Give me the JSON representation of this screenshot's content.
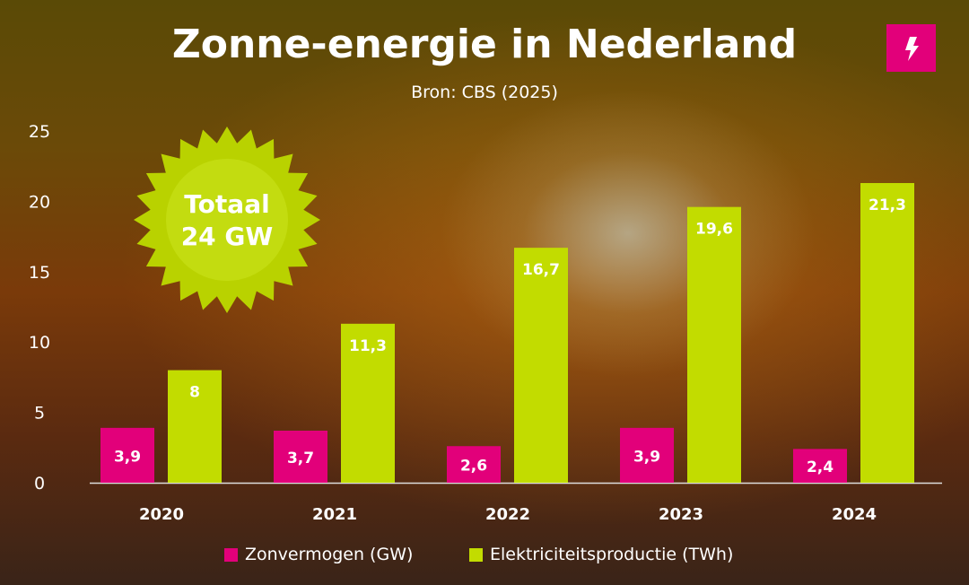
{
  "title": "Zonne-energie in Nederland",
  "subtitle": "Bron: CBS (2025)",
  "logo_icon": "lightning-bolt-icon",
  "badge": {
    "line1": "Totaal",
    "line2": "24 GW",
    "icon": "sun-icon"
  },
  "chart_data": {
    "type": "bar",
    "title": "Zonne-energie in Nederland",
    "categories": [
      "2020",
      "2021",
      "2022",
      "2023",
      "2024"
    ],
    "series": [
      {
        "name": "Zonvermogen (GW)",
        "color": "#e2007a",
        "values": [
          3.9,
          3.7,
          2.6,
          3.9,
          2.4
        ],
        "labels": [
          "3,9",
          "3,7",
          "2,6",
          "3,9",
          "2,4"
        ]
      },
      {
        "name": "Elektriciteitsproductie (TWh)",
        "color": "#c2dc00",
        "values": [
          8,
          11.3,
          16.7,
          19.6,
          21.3
        ],
        "labels": [
          "8",
          "11,3",
          "16,7",
          "19,6",
          "21,3"
        ]
      }
    ],
    "yticks": [
      "0",
      "5",
      "10",
      "15",
      "20",
      "25"
    ],
    "ylim": [
      0,
      25
    ],
    "grid": false,
    "legend": "bottom"
  }
}
